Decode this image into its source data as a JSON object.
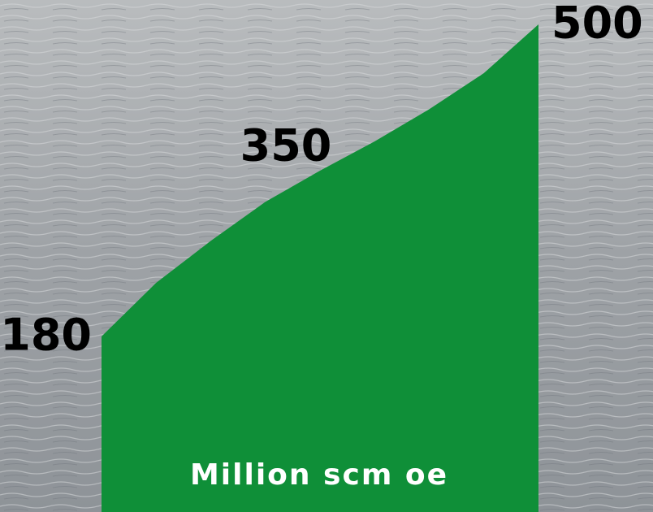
{
  "chart_data": {
    "type": "area",
    "categories": [
      null,
      null,
      null,
      null,
      null,
      null,
      null,
      null,
      null
    ],
    "values": [
      180,
      235,
      278,
      318,
      350,
      380,
      413,
      450,
      500
    ],
    "value_labels": [
      "180",
      null,
      null,
      null,
      "350",
      null,
      null,
      null,
      "500"
    ],
    "color": "#0f8f38",
    "ylim": [
      0,
      525
    ],
    "annotation": "Million scm oe"
  }
}
